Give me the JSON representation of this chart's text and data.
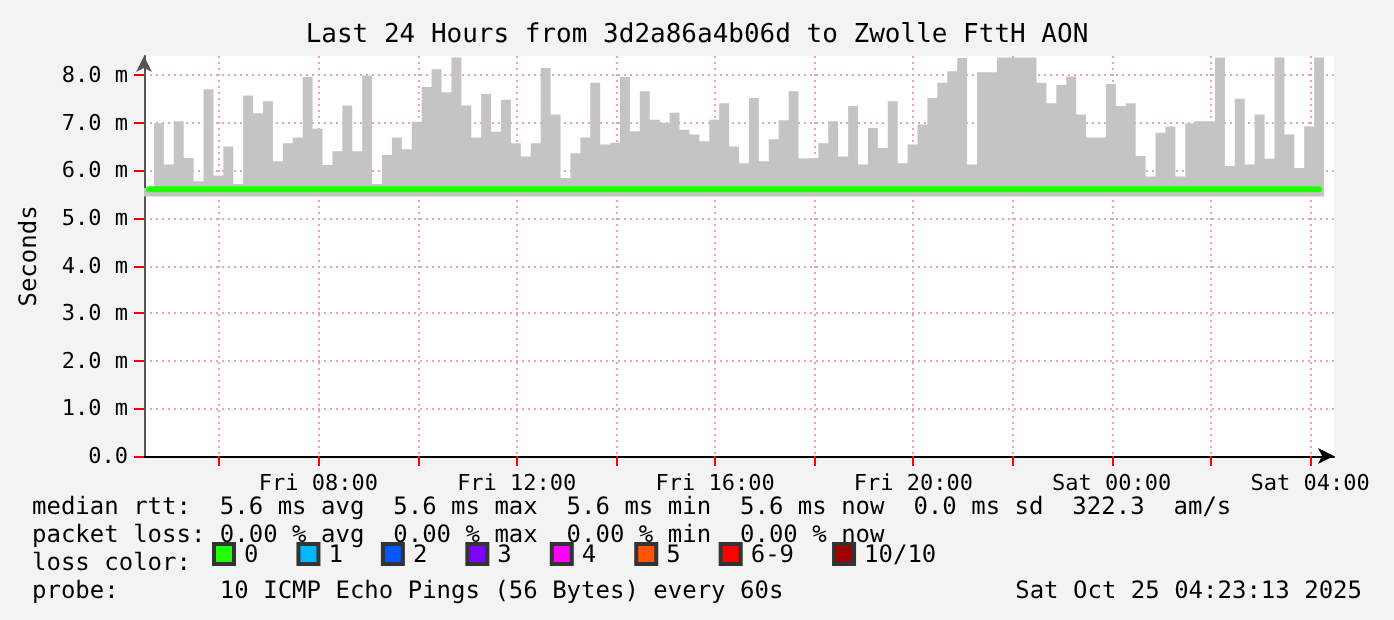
{
  "chart_data": {
    "type": "line",
    "title": "Last 24 Hours from 3d2a86a4b06d to Zwolle FttH AON",
    "ylabel": "Seconds",
    "x": [
      "2025-10-24T04:35",
      "2025-10-24T04:47",
      "2025-10-24T04:59",
      "2025-10-24T05:11",
      "2025-10-24T05:23",
      "2025-10-24T05:35",
      "2025-10-24T05:47",
      "2025-10-24T05:59",
      "2025-10-24T06:11",
      "2025-10-24T06:23",
      "2025-10-24T06:35",
      "2025-10-24T06:47",
      "2025-10-24T06:59",
      "2025-10-24T07:11",
      "2025-10-24T07:23",
      "2025-10-24T07:35",
      "2025-10-24T07:47",
      "2025-10-24T07:59",
      "2025-10-24T08:11",
      "2025-10-24T08:23",
      "2025-10-24T08:35",
      "2025-10-24T08:47",
      "2025-10-24T08:59",
      "2025-10-24T09:11",
      "2025-10-24T09:23",
      "2025-10-24T09:35",
      "2025-10-24T09:47",
      "2025-10-24T09:59",
      "2025-10-24T10:11",
      "2025-10-24T10:23",
      "2025-10-24T10:35",
      "2025-10-24T10:47",
      "2025-10-24T10:59",
      "2025-10-24T11:11",
      "2025-10-24T11:23",
      "2025-10-24T11:35",
      "2025-10-24T11:47",
      "2025-10-24T11:59",
      "2025-10-24T12:11",
      "2025-10-24T12:23",
      "2025-10-24T12:35",
      "2025-10-24T12:47",
      "2025-10-24T12:59",
      "2025-10-24T13:11",
      "2025-10-24T13:23",
      "2025-10-24T13:35",
      "2025-10-24T13:47",
      "2025-10-24T13:59",
      "2025-10-24T14:11",
      "2025-10-24T14:23",
      "2025-10-24T14:35",
      "2025-10-24T14:47",
      "2025-10-24T14:59",
      "2025-10-24T15:11",
      "2025-10-24T15:23",
      "2025-10-24T15:35",
      "2025-10-24T15:47",
      "2025-10-24T15:59",
      "2025-10-24T16:11",
      "2025-10-24T16:23",
      "2025-10-24T16:35",
      "2025-10-24T16:47",
      "2025-10-24T16:59",
      "2025-10-24T17:11",
      "2025-10-24T17:23",
      "2025-10-24T17:35",
      "2025-10-24T17:47",
      "2025-10-24T17:59",
      "2025-10-24T18:11",
      "2025-10-24T18:23",
      "2025-10-24T18:35",
      "2025-10-24T18:47",
      "2025-10-24T18:59",
      "2025-10-24T19:11",
      "2025-10-24T19:23",
      "2025-10-24T19:35",
      "2025-10-24T19:47",
      "2025-10-24T19:59",
      "2025-10-24T20:11",
      "2025-10-24T20:23",
      "2025-10-24T20:35",
      "2025-10-24T20:47",
      "2025-10-24T20:59",
      "2025-10-24T21:11",
      "2025-10-24T21:23",
      "2025-10-24T21:35",
      "2025-10-24T21:47",
      "2025-10-24T21:59",
      "2025-10-24T22:11",
      "2025-10-24T22:23",
      "2025-10-24T22:35",
      "2025-10-24T22:47",
      "2025-10-24T22:59",
      "2025-10-24T23:11",
      "2025-10-24T23:23",
      "2025-10-24T23:35",
      "2025-10-24T23:47",
      "2025-10-24T23:59",
      "2025-10-25T00:11",
      "2025-10-25T00:23",
      "2025-10-25T00:35",
      "2025-10-25T00:47",
      "2025-10-25T00:59",
      "2025-10-25T01:11",
      "2025-10-25T01:23",
      "2025-10-25T01:35",
      "2025-10-25T01:47",
      "2025-10-25T01:59",
      "2025-10-25T02:11",
      "2025-10-25T02:23",
      "2025-10-25T02:35",
      "2025-10-25T02:47",
      "2025-10-25T02:59",
      "2025-10-25T03:11",
      "2025-10-25T03:23",
      "2025-10-25T03:35",
      "2025-10-25T03:47",
      "2025-10-25T03:59",
      "2025-10-25T04:11"
    ],
    "series": [
      {
        "name": "0",
        "color": "#20ff00",
        "values": [
          5.6,
          5.6,
          5.6,
          5.6,
          5.6,
          5.6,
          5.6,
          5.6,
          5.6,
          5.6,
          5.6,
          5.6,
          5.6,
          5.6,
          5.6,
          5.6,
          5.6,
          5.6,
          5.6,
          5.6,
          5.6,
          5.6,
          5.6,
          5.6,
          5.6,
          5.6,
          5.6,
          5.6,
          5.6,
          5.6,
          5.6,
          5.6,
          5.6,
          5.6,
          5.6,
          5.6,
          5.6,
          5.6,
          5.6,
          5.6,
          5.6,
          5.6,
          5.6,
          5.6,
          5.6,
          5.6,
          5.6,
          5.6,
          5.6,
          5.6,
          5.6,
          5.6,
          5.6,
          5.6,
          5.6,
          5.6,
          5.6,
          5.6,
          5.6,
          5.6,
          5.6,
          5.6,
          5.6,
          5.6,
          5.6,
          5.6,
          5.6,
          5.6,
          5.6,
          5.6,
          5.6,
          5.6,
          5.6,
          5.6,
          5.6,
          5.6,
          5.6,
          5.6,
          5.6,
          5.6,
          5.6,
          5.6,
          5.6,
          5.6,
          5.6,
          5.6,
          5.6,
          5.6,
          5.6,
          5.6,
          5.6,
          5.6,
          5.6,
          5.6,
          5.6,
          5.6,
          5.6,
          5.6,
          5.6,
          5.6,
          5.6,
          5.6,
          5.6,
          5.6,
          5.6,
          5.6,
          5.6,
          5.6,
          5.6,
          5.6,
          5.6,
          5.6,
          5.6,
          5.6,
          5.6,
          5.6,
          5.6,
          5.6,
          5.6
        ],
        "lower": [
          5.45,
          5.45,
          5.45,
          5.45,
          5.45,
          5.45,
          5.45,
          5.45,
          5.45,
          5.45,
          5.45,
          5.45,
          5.45,
          5.45,
          5.45,
          5.45,
          5.45,
          5.45,
          5.45,
          5.45,
          5.45,
          5.45,
          5.45,
          5.45,
          5.45,
          5.45,
          5.45,
          5.45,
          5.45,
          5.45,
          5.45,
          5.45,
          5.45,
          5.45,
          5.45,
          5.45,
          5.45,
          5.45,
          5.45,
          5.45,
          5.45,
          5.45,
          5.45,
          5.45,
          5.45,
          5.45,
          5.45,
          5.45,
          5.45,
          5.45,
          5.45,
          5.45,
          5.45,
          5.45,
          5.45,
          5.45,
          5.45,
          5.45,
          5.45,
          5.45,
          5.45,
          5.45,
          5.45,
          5.45,
          5.45,
          5.45,
          5.45,
          5.45,
          5.45,
          5.45,
          5.45,
          5.45,
          5.45,
          5.45,
          5.45,
          5.45,
          5.45,
          5.45,
          5.45,
          5.45,
          5.45,
          5.45,
          5.45,
          5.45,
          5.45,
          5.45,
          5.45,
          5.45,
          5.45,
          5.45,
          5.45,
          5.45,
          5.45,
          5.45,
          5.45,
          5.45,
          5.45,
          5.45,
          5.45,
          5.45,
          5.45,
          5.45,
          5.45,
          5.45,
          5.45,
          5.45,
          5.45,
          5.45,
          5.45,
          5.45,
          5.45,
          5.45,
          5.45,
          5.45,
          5.45,
          5.45,
          5.45,
          5.45,
          5.45
        ],
        "upper": [
          5.63,
          6.99,
          6.12,
          7.03,
          6.26,
          5.77,
          7.7,
          5.89,
          6.5,
          5.71,
          7.57,
          7.2,
          7.45,
          6.19,
          6.57,
          6.69,
          7.96,
          6.87,
          6.11,
          6.4,
          7.36,
          6.4,
          7.99,
          5.71,
          6.32,
          6.69,
          6.44,
          7.02,
          7.75,
          8.12,
          7.64,
          8.37,
          7.36,
          6.69,
          7.6,
          6.81,
          7.48,
          6.57,
          6.29,
          6.57,
          8.15,
          7.17,
          5.84,
          6.36,
          6.69,
          7.84,
          6.54,
          6.58,
          7.96,
          6.82,
          7.66,
          7.06,
          7.0,
          7.21,
          6.85,
          6.75,
          6.61,
          7.06,
          7.41,
          6.5,
          6.15,
          7.52,
          6.19,
          6.65,
          7.05,
          7.66,
          6.25,
          6.26,
          6.57,
          7.03,
          6.29,
          7.35,
          6.12,
          6.89,
          6.47,
          7.45,
          6.15,
          6.54,
          6.96,
          7.52,
          7.84,
          8.08,
          8.36,
          6.12,
          8.06,
          8.06,
          8.37,
          8.37,
          8.37,
          8.37,
          7.84,
          7.41,
          7.79,
          7.97,
          7.17,
          6.69,
          6.69,
          7.81,
          7.35,
          7.41,
          6.3,
          5.87,
          6.79,
          6.92,
          5.87,
          6.99,
          7.03,
          7.03,
          8.37,
          6.09,
          7.5,
          6.12,
          7.17,
          6.24,
          8.37,
          6.75,
          6.05,
          6.92,
          8.37
        ]
      },
      {
        "name": "1",
        "color": "#00b8ff",
        "values": [
          null,
          null,
          null,
          null,
          null,
          null,
          null,
          null,
          null,
          null,
          null,
          null,
          null,
          null,
          null,
          null,
          null,
          null,
          null,
          null,
          null,
          null,
          null,
          null,
          null,
          null,
          null,
          null,
          null,
          null,
          null,
          null,
          null,
          null,
          null,
          null,
          null,
          null,
          null,
          null,
          null,
          null,
          null,
          null,
          null,
          null,
          null,
          null,
          null,
          null,
          null,
          null,
          null,
          null,
          null,
          null,
          null,
          null,
          null,
          null,
          null,
          null,
          null,
          null,
          null,
          null,
          null,
          null,
          null,
          null,
          null,
          null,
          null,
          null,
          null,
          null,
          null,
          null,
          null,
          null,
          null,
          null,
          null,
          null,
          null,
          null,
          null,
          null,
          null,
          null,
          null,
          null,
          null,
          null,
          null,
          null,
          null,
          null,
          null,
          null,
          null,
          null,
          null,
          null,
          null,
          null,
          null,
          null,
          null,
          null,
          null,
          null,
          null,
          null,
          null,
          null,
          null,
          null,
          null
        ]
      },
      {
        "name": "2",
        "color": "#0059ff",
        "values": [
          null,
          null,
          null,
          null,
          null,
          null,
          null,
          null,
          null,
          null,
          null,
          null,
          null,
          null,
          null,
          null,
          null,
          null,
          null,
          null,
          null,
          null,
          null,
          null,
          null,
          null,
          null,
          null,
          null,
          null,
          null,
          null,
          null,
          null,
          null,
          null,
          null,
          null,
          null,
          null,
          null,
          null,
          null,
          null,
          null,
          null,
          null,
          null,
          null,
          null,
          null,
          null,
          null,
          null,
          null,
          null,
          null,
          null,
          null,
          null,
          null,
          null,
          null,
          null,
          null,
          null,
          null,
          null,
          null,
          null,
          null,
          null,
          null,
          null,
          null,
          null,
          null,
          null,
          null,
          null,
          null,
          null,
          null,
          null,
          null,
          null,
          null,
          null,
          null,
          null,
          null,
          null,
          null,
          null,
          null,
          null,
          null,
          null,
          null,
          null,
          null,
          null,
          null,
          null,
          null,
          null,
          null,
          null,
          null,
          null,
          null,
          null,
          null,
          null,
          null,
          null,
          null,
          null,
          null
        ]
      },
      {
        "name": "3",
        "color": "#7e00ff",
        "values": [
          null,
          null,
          null,
          null,
          null,
          null,
          null,
          null,
          null,
          null,
          null,
          null,
          null,
          null,
          null,
          null,
          null,
          null,
          null,
          null,
          null,
          null,
          null,
          null,
          null,
          null,
          null,
          null,
          null,
          null,
          null,
          null,
          null,
          null,
          null,
          null,
          null,
          null,
          null,
          null,
          null,
          null,
          null,
          null,
          null,
          null,
          null,
          null,
          null,
          null,
          null,
          null,
          null,
          null,
          null,
          null,
          null,
          null,
          null,
          null,
          null,
          null,
          null,
          null,
          null,
          null,
          null,
          null,
          null,
          null,
          null,
          null,
          null,
          null,
          null,
          null,
          null,
          null,
          null,
          null,
          null,
          null,
          null,
          null,
          null,
          null,
          null,
          null,
          null,
          null,
          null,
          null,
          null,
          null,
          null,
          null,
          null,
          null,
          null,
          null,
          null,
          null,
          null,
          null,
          null,
          null,
          null,
          null,
          null,
          null,
          null,
          null,
          null,
          null,
          null,
          null,
          null,
          null,
          null
        ]
      },
      {
        "name": "4",
        "color": "#ff00ff",
        "values": [
          null,
          null,
          null,
          null,
          null,
          null,
          null,
          null,
          null,
          null,
          null,
          null,
          null,
          null,
          null,
          null,
          null,
          null,
          null,
          null,
          null,
          null,
          null,
          null,
          null,
          null,
          null,
          null,
          null,
          null,
          null,
          null,
          null,
          null,
          null,
          null,
          null,
          null,
          null,
          null,
          null,
          null,
          null,
          null,
          null,
          null,
          null,
          null,
          null,
          null,
          null,
          null,
          null,
          null,
          null,
          null,
          null,
          null,
          null,
          null,
          null,
          null,
          null,
          null,
          null,
          null,
          null,
          null,
          null,
          null,
          null,
          null,
          null,
          null,
          null,
          null,
          null,
          null,
          null,
          null,
          null,
          null,
          null,
          null,
          null,
          null,
          null,
          null,
          null,
          null,
          null,
          null,
          null,
          null,
          null,
          null,
          null,
          null,
          null,
          null,
          null,
          null,
          null,
          null,
          null,
          null,
          null,
          null,
          null,
          null,
          null,
          null,
          null,
          null,
          null,
          null,
          null,
          null,
          null
        ]
      },
      {
        "name": "5",
        "color": "#ff5500",
        "values": [
          null,
          null,
          null,
          null,
          null,
          null,
          null,
          null,
          null,
          null,
          null,
          null,
          null,
          null,
          null,
          null,
          null,
          null,
          null,
          null,
          null,
          null,
          null,
          null,
          null,
          null,
          null,
          null,
          null,
          null,
          null,
          null,
          null,
          null,
          null,
          null,
          null,
          null,
          null,
          null,
          null,
          null,
          null,
          null,
          null,
          null,
          null,
          null,
          null,
          null,
          null,
          null,
          null,
          null,
          null,
          null,
          null,
          null,
          null,
          null,
          null,
          null,
          null,
          null,
          null,
          null,
          null,
          null,
          null,
          null,
          null,
          null,
          null,
          null,
          null,
          null,
          null,
          null,
          null,
          null,
          null,
          null,
          null,
          null,
          null,
          null,
          null,
          null,
          null,
          null,
          null,
          null,
          null,
          null,
          null,
          null,
          null,
          null,
          null,
          null,
          null,
          null,
          null,
          null,
          null,
          null,
          null,
          null,
          null,
          null,
          null,
          null,
          null,
          null,
          null,
          null,
          null,
          null,
          null
        ]
      },
      {
        "name": "6-9",
        "color": "#ff0000",
        "values": [
          null,
          null,
          null,
          null,
          null,
          null,
          null,
          null,
          null,
          null,
          null,
          null,
          null,
          null,
          null,
          null,
          null,
          null,
          null,
          null,
          null,
          null,
          null,
          null,
          null,
          null,
          null,
          null,
          null,
          null,
          null,
          null,
          null,
          null,
          null,
          null,
          null,
          null,
          null,
          null,
          null,
          null,
          null,
          null,
          null,
          null,
          null,
          null,
          null,
          null,
          null,
          null,
          null,
          null,
          null,
          null,
          null,
          null,
          null,
          null,
          null,
          null,
          null,
          null,
          null,
          null,
          null,
          null,
          null,
          null,
          null,
          null,
          null,
          null,
          null,
          null,
          null,
          null,
          null,
          null,
          null,
          null,
          null,
          null,
          null,
          null,
          null,
          null,
          null,
          null,
          null,
          null,
          null,
          null,
          null,
          null,
          null,
          null,
          null,
          null,
          null,
          null,
          null,
          null,
          null,
          null,
          null,
          null,
          null,
          null,
          null,
          null,
          null,
          null,
          null,
          null,
          null,
          null,
          null
        ]
      },
      {
        "name": "10/10",
        "color": "#a10000",
        "values": [
          null,
          null,
          null,
          null,
          null,
          null,
          null,
          null,
          null,
          null,
          null,
          null,
          null,
          null,
          null,
          null,
          null,
          null,
          null,
          null,
          null,
          null,
          null,
          null,
          null,
          null,
          null,
          null,
          null,
          null,
          null,
          null,
          null,
          null,
          null,
          null,
          null,
          null,
          null,
          null,
          null,
          null,
          null,
          null,
          null,
          null,
          null,
          null,
          null,
          null,
          null,
          null,
          null,
          null,
          null,
          null,
          null,
          null,
          null,
          null,
          null,
          null,
          null,
          null,
          null,
          null,
          null,
          null,
          null,
          null,
          null,
          null,
          null,
          null,
          null,
          null,
          null,
          null,
          null,
          null,
          null,
          null,
          null,
          null,
          null,
          null,
          null,
          null,
          null,
          null,
          null,
          null,
          null,
          null,
          null,
          null,
          null,
          null,
          null,
          null,
          null,
          null,
          null,
          null,
          null,
          null,
          null,
          null,
          null,
          null,
          null,
          null,
          null,
          null,
          null,
          null,
          null,
          null,
          null
        ]
      }
    ],
    "xlim": [
      "2025-10-24T04:29",
      "2025-10-25T04:29"
    ],
    "xticks": [
      {
        "value": "2025-10-24T06:00",
        "label": null
      },
      {
        "value": "2025-10-24T08:00",
        "label": "Fri 08:00"
      },
      {
        "value": "2025-10-24T10:00",
        "label": null
      },
      {
        "value": "2025-10-24T12:00",
        "label": "Fri 12:00"
      },
      {
        "value": "2025-10-24T14:00",
        "label": null
      },
      {
        "value": "2025-10-24T16:00",
        "label": "Fri 16:00"
      },
      {
        "value": "2025-10-24T18:00",
        "label": null
      },
      {
        "value": "2025-10-24T20:00",
        "label": "Fri 20:00"
      },
      {
        "value": "2025-10-24T22:00",
        "label": null
      },
      {
        "value": "2025-10-25T00:00",
        "label": "Sat 00:00"
      },
      {
        "value": "2025-10-25T02:00",
        "label": null
      },
      {
        "value": "2025-10-25T04:00",
        "label": "Sat 04:00"
      }
    ],
    "ylim": [
      0,
      8.4
    ],
    "yticks": [
      {
        "value": 0,
        "label": "0.0"
      },
      {
        "value": 1,
        "label": "1.0 m"
      },
      {
        "value": 2,
        "label": "2.0 m"
      },
      {
        "value": 3,
        "label": "3.0 m"
      },
      {
        "value": 4,
        "label": "4.0 m"
      },
      {
        "value": 5,
        "label": "5.0 m"
      },
      {
        "value": 6,
        "label": "6.0 m"
      },
      {
        "value": 7,
        "label": "7.0 m"
      },
      {
        "value": 8,
        "label": "8.0 m"
      }
    ],
    "grid": true,
    "legend": "bottom",
    "marker": "none",
    "line_style": "solid",
    "annotations": [
      "median rtt:  5.6 ms avg  5.6 ms max  5.6 ms min  5.6 ms now  0.0 ms sd  322.3  am/s",
      "packet loss: 0.00 % avg  0.00 % max  0.00 % min  0.00 % now",
      "loss color:",
      "probe:       10 ICMP Echo Pings (56 Bytes) every 60s",
      "Sat Oct 25 04:23:13 2025"
    ]
  }
}
